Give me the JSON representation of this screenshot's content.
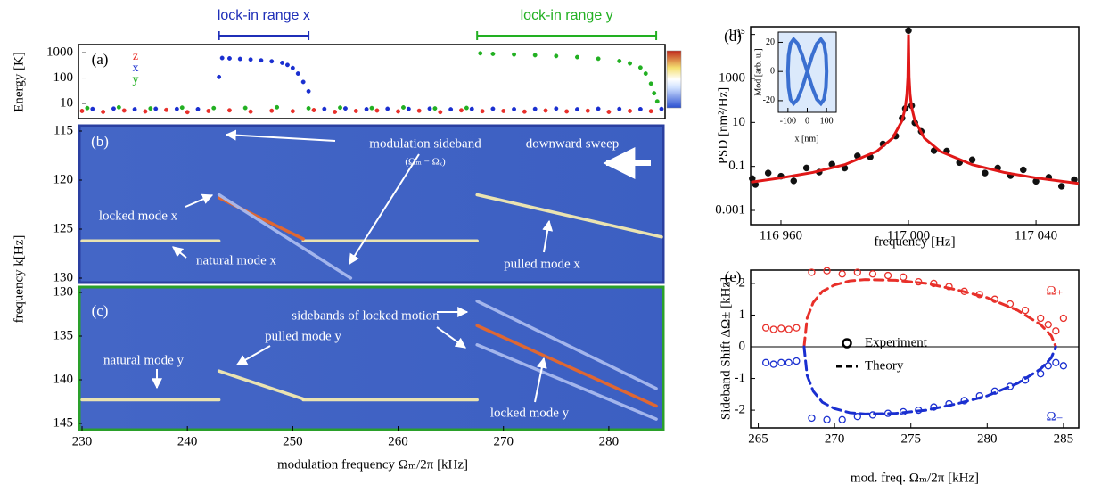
{
  "chart_data": [
    {
      "type": "scatter",
      "panel_label": "(a)",
      "ylabel": "Energy [K]",
      "log_y": true,
      "xlim": [
        230,
        285
      ],
      "ylim": [
        2.5,
        2100
      ],
      "yticks": [
        10,
        100,
        1000
      ],
      "legend": "top-left",
      "ranges": [
        {
          "label": "lock-in range x",
          "x": [
            243,
            251.5
          ],
          "color": "#1f2fb8"
        },
        {
          "label": "lock-in range y",
          "x": [
            267.5,
            284.5
          ],
          "color": "#22b022"
        }
      ],
      "series": [
        {
          "name": "z",
          "color": "#e8302a",
          "mode": "markers",
          "x": [
            230,
            232,
            234,
            236,
            238,
            240,
            242,
            244,
            246,
            248,
            250,
            252,
            254,
            256,
            258,
            260,
            262,
            264,
            266,
            268,
            270,
            272,
            274,
            276,
            278,
            280,
            282,
            284
          ],
          "values": [
            5,
            4.6,
            5.2,
            4.8,
            5.5,
            4.5,
            5,
            5.3,
            4.7,
            5.1,
            4.9,
            5.4,
            4.6,
            5,
            5.2,
            4.8,
            5.1,
            4.5,
            5.3,
            4.9,
            5,
            4.7,
            5.2,
            4.8,
            5.1,
            4.6,
            5,
            4.9
          ]
        },
        {
          "name": "x",
          "color": "#1a2fd0",
          "mode": "markers",
          "x": [
            231,
            233,
            235,
            237,
            239,
            241,
            243,
            243.3,
            244,
            245,
            246,
            247,
            248,
            249,
            249.5,
            250,
            250.5,
            251,
            251.5,
            253,
            255,
            257,
            259,
            261,
            263,
            265,
            267,
            269,
            271,
            273,
            275,
            277,
            279,
            281,
            283,
            285
          ],
          "values": [
            6,
            6.2,
            5.8,
            6.1,
            6,
            5.9,
            110,
            620,
            600,
            570,
            540,
            500,
            460,
            400,
            330,
            250,
            150,
            70,
            30,
            6,
            6.3,
            5.9,
            6.1,
            6,
            6.2,
            5.8,
            6,
            6.1,
            5.9,
            6,
            6.2,
            5.8,
            6.1,
            6,
            5.9,
            6
          ]
        },
        {
          "name": "y",
          "color": "#22b022",
          "mode": "markers",
          "x": [
            230.5,
            233.5,
            236.5,
            239.5,
            242.5,
            245.5,
            248.5,
            251.5,
            254.5,
            257.5,
            260.5,
            263.5,
            266.5,
            267.8,
            269,
            271,
            273,
            275,
            277,
            279,
            281,
            282,
            283,
            283.5,
            284,
            284.3,
            284.6
          ],
          "values": [
            6.5,
            7,
            6.3,
            6.8,
            6.5,
            6.6,
            7,
            6.4,
            6.8,
            6.5,
            6.9,
            6.3,
            6.6,
            950,
            900,
            850,
            800,
            740,
            670,
            580,
            470,
            380,
            260,
            150,
            60,
            25,
            12
          ]
        }
      ]
    },
    {
      "type": "line",
      "panel_label": "(b)",
      "ylabel": "frequency k[Hz]",
      "xlim": [
        230,
        285
      ],
      "ylim": [
        130,
        115
      ],
      "yticks": [
        115,
        120,
        125,
        130
      ],
      "annotations": [
        "modulation sideband",
        "(Ωₘ − Ωₓ)",
        "downward sweep",
        "locked mode x",
        "natural mode x",
        "pulled mode x"
      ],
      "series": [
        {
          "color": "#f3eab0",
          "x": [
            230,
            243
          ],
          "values": [
            126.2,
            126.2
          ]
        },
        {
          "color": "#f3eab0",
          "x": [
            251,
            267.5
          ],
          "values": [
            126.2,
            126.2
          ]
        },
        {
          "color": "#e8672a",
          "x": [
            243,
            251
          ],
          "values": [
            121.8,
            126
          ]
        },
        {
          "color": "#a9b9ee",
          "x": [
            243,
            255.5
          ],
          "values": [
            121.5,
            130
          ]
        },
        {
          "color": "#f3eab0",
          "x": [
            267.5,
            285
          ],
          "values": [
            121.5,
            125.8
          ]
        }
      ]
    },
    {
      "type": "line",
      "panel_label": "(c)",
      "xlabel": "modulation frequency Ωₘ/2π [kHz]",
      "xlim": [
        230,
        285
      ],
      "ylim": [
        145,
        130
      ],
      "yticks": [
        130,
        135,
        140,
        145
      ],
      "xticks": [
        230,
        240,
        250,
        260,
        270,
        280
      ],
      "annotations": [
        "sidebands of locked motion",
        "natural mode y",
        "pulled mode y",
        "locked mode y"
      ],
      "series": [
        {
          "color": "#f3eab0",
          "x": [
            230,
            243
          ],
          "values": [
            142.3,
            142.3
          ]
        },
        {
          "color": "#f3eab0",
          "x": [
            243,
            251
          ],
          "values": [
            139,
            142.2
          ]
        },
        {
          "color": "#f3eab0",
          "x": [
            251,
            267.5
          ],
          "values": [
            142.3,
            142.3
          ]
        },
        {
          "color": "#a9b9ee",
          "x": [
            267.5,
            284.5
          ],
          "values": [
            131,
            141
          ]
        },
        {
          "color": "#a9b9ee",
          "x": [
            267.5,
            284.5
          ],
          "values": [
            136,
            144.5
          ]
        },
        {
          "color": "#e8672a",
          "x": [
            267.5,
            284.5
          ],
          "values": [
            133.8,
            143
          ]
        }
      ]
    },
    {
      "type": "scatter",
      "panel_label": "(d)",
      "xlabel": "frequency [Hz]",
      "ylabel": "PSD [nm²/Hz]",
      "log_y": true,
      "xlim": [
        116950.5,
        117053.4
      ],
      "ylim": [
        0.000225,
        224000
      ],
      "xticks": [
        {
          "value": 116960,
          "label": "116 960"
        },
        {
          "value": 117000,
          "label": "117 000"
        },
        {
          "value": 117040,
          "label": "117 040"
        }
      ],
      "yticks": [
        0.001,
        0.1,
        10,
        1000,
        {
          "value": 100000,
          "label": "10⁵"
        }
      ],
      "series": [
        {
          "color": "#111111",
          "mode": "markers",
          "x": [
            116951,
            116952,
            116956,
            116960,
            116964,
            116968,
            116972,
            116976,
            116980,
            116984,
            116988,
            116992,
            116996,
            116998,
            116999,
            117000,
            117001,
            117002,
            117004,
            117008,
            117012,
            117016,
            117020,
            117024,
            117028,
            117032,
            117036,
            117040,
            117044,
            117048,
            117052
          ],
          "values": [
            0.028,
            0.015,
            0.05,
            0.036,
            0.022,
            0.085,
            0.055,
            0.125,
            0.084,
            0.3,
            0.27,
            1.05,
            2.4,
            15.6,
            43,
            150000,
            58,
            9.6,
            3.9,
            0.52,
            0.5,
            0.15,
            0.2,
            0.05,
            0.085,
            0.038,
            0.07,
            0.021,
            0.032,
            0.0125,
            0.025
          ]
        },
        {
          "color": "#e01818",
          "mode": "line",
          "x": [
            116951,
            116960,
            116970,
            116980,
            116990,
            116995,
            116998,
            116999,
            116999.5,
            116999.8,
            117000,
            117000.2,
            117000.5,
            117001,
            117002,
            117005,
            117010,
            117020,
            117030,
            117040,
            117053
          ],
          "values": [
            0.0196,
            0.03,
            0.0533,
            0.12,
            0.48,
            1.92,
            12,
            48,
            192,
            1186,
            100000,
            1186,
            192,
            48,
            12,
            1.92,
            0.48,
            0.12,
            0.0533,
            0.03,
            0.017
          ]
        }
      ]
    },
    {
      "type": "line",
      "xlabel": "x [nm]",
      "ylabel": "Mod [arb. u.]",
      "xlim": [
        -150,
        150
      ],
      "ylim": [
        -28,
        27
      ],
      "xticks": [
        -100,
        0,
        100
      ],
      "yticks": [
        -20,
        0,
        20
      ],
      "series": [
        {
          "color": "#3a6fd0",
          "x": [
            0,
            25.9,
            50,
            70.7,
            86.6,
            96.6,
            100,
            96.6,
            86.6,
            70.7,
            50,
            25.9,
            0,
            -25.9,
            -50,
            -70.7,
            -86.6,
            -96.6,
            -100,
            -96.6,
            -86.6,
            -70.7,
            -50,
            -25.9,
            0
          ],
          "values": [
            0,
            11,
            19.1,
            22,
            19.1,
            11,
            0,
            -11,
            -19.1,
            -22,
            -19.1,
            -11,
            0,
            11,
            19.1,
            22,
            19.1,
            11,
            0,
            -11,
            -19.1,
            -22,
            -19.1,
            -11,
            0
          ]
        }
      ]
    },
    {
      "type": "scatter",
      "panel_label": "(e)",
      "xlabel": "mod. freq.  Ωₘ/2π  [kHz]",
      "ylabel": "Sideband Shift  ΔΩ± [kHz]",
      "xlim": [
        264.5,
        286
      ],
      "ylim": [
        -2.56,
        2.42
      ],
      "xticks": [
        265,
        270,
        275,
        280,
        285
      ],
      "yticks": [
        -2,
        -1,
        0,
        1,
        2
      ],
      "zero_line": true,
      "legend": [
        {
          "label": "Experiment",
          "marker": "circle"
        },
        {
          "label": "Theory",
          "marker": "dashed"
        }
      ],
      "annotations": [
        "Ω₊",
        "Ω₋"
      ],
      "series": [
        {
          "color": "#e8302a",
          "mode": "open",
          "x": [
            265.5,
            266,
            266.5,
            267,
            267.5,
            268.5,
            269.5,
            270.5,
            271.5,
            272.5,
            273.5,
            274.5,
            275.5,
            276.5,
            277.5,
            278.5,
            279.5,
            280.5,
            281.5,
            282.5,
            283.5,
            284,
            284.5,
            285
          ],
          "values": [
            0.6,
            0.55,
            0.58,
            0.55,
            0.6,
            2.35,
            2.4,
            2.3,
            2.35,
            2.3,
            2.25,
            2.2,
            2.05,
            2,
            1.9,
            1.75,
            1.65,
            1.5,
            1.35,
            1.15,
            0.9,
            0.7,
            0.5,
            0.9
          ]
        },
        {
          "color": "#1a2fd0",
          "mode": "open",
          "x": [
            265.5,
            266,
            266.5,
            267,
            267.5,
            268.5,
            269.5,
            270.5,
            271.5,
            272.5,
            273.5,
            274.5,
            275.5,
            276.5,
            277.5,
            278.5,
            279.5,
            280.5,
            281.5,
            282.5,
            283.5,
            284,
            284.5,
            285
          ],
          "values": [
            -0.5,
            -0.55,
            -0.5,
            -0.5,
            -0.45,
            -2.25,
            -2.3,
            -2.3,
            -2.2,
            -2.15,
            -2.1,
            -2.05,
            -2,
            -1.9,
            -1.8,
            -1.7,
            -1.55,
            -1.4,
            -1.25,
            -1.05,
            -0.85,
            -0.6,
            -0.5,
            -0.6
          ]
        },
        {
          "color": "#e8302a",
          "mode": "dashed",
          "x": [
            268,
            268.2,
            268.6,
            269.2,
            270,
            271,
            272,
            274,
            276,
            278,
            280,
            282,
            283.5,
            284.2,
            284.5
          ],
          "values": [
            0,
            0.9,
            1.4,
            1.75,
            1.95,
            2.08,
            2.12,
            2.1,
            2,
            1.8,
            1.55,
            1.15,
            0.7,
            0.35,
            0
          ]
        },
        {
          "color": "#1a2fd0",
          "mode": "dashed",
          "x": [
            268,
            268.2,
            268.6,
            269.2,
            270,
            271,
            272,
            274,
            276,
            278,
            280,
            282,
            283.5,
            284.2,
            284.5
          ],
          "values": [
            0,
            -0.9,
            -1.4,
            -1.75,
            -1.95,
            -2.08,
            -2.12,
            -2.1,
            -2,
            -1.8,
            -1.55,
            -1.15,
            -0.7,
            -0.35,
            0
          ]
        }
      ]
    }
  ]
}
